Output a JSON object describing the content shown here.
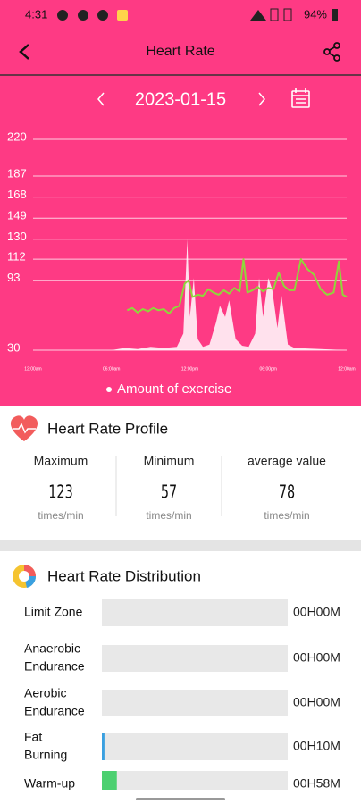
{
  "status_bar": {
    "time": "4:31",
    "battery": "94%"
  },
  "header": {
    "title": "Heart Rate"
  },
  "date": "2023-01-15",
  "chart_data": {
    "type": "line",
    "xlim": [
      0,
      24
    ],
    "xticks": [
      {
        "value": 0,
        "label": "12:00am"
      },
      {
        "value": 6,
        "label": "06:00am"
      },
      {
        "value": 12,
        "label": "12:00pm"
      },
      {
        "value": 18,
        "label": "06:00pm"
      },
      {
        "value": 24,
        "label": "12:00am"
      }
    ],
    "ylim": [
      30,
      220
    ],
    "yticks": [
      30,
      93,
      112,
      130,
      149,
      168,
      187,
      220
    ],
    "grid": true,
    "series": [
      {
        "name": "Amount of exercise",
        "color": "#ffffff",
        "fill": true,
        "x": [
          6,
          7,
          8,
          9,
          10,
          11,
          11.5,
          11.8,
          12,
          12.3,
          12.6,
          13,
          13.5,
          14,
          14.3,
          14.7,
          15,
          15.5,
          16,
          16.5,
          17,
          17.3,
          17.6,
          18,
          18.3,
          18.7,
          19,
          19.5,
          20,
          22,
          24
        ],
        "values": [
          30,
          32,
          31,
          33,
          32,
          33,
          45,
          130,
          60,
          95,
          40,
          33,
          35,
          55,
          70,
          60,
          75,
          40,
          34,
          33,
          45,
          95,
          60,
          95,
          85,
          50,
          80,
          35,
          32,
          31,
          30
        ]
      },
      {
        "color": "#8fd63b",
        "x": [
          7.2,
          7.6,
          8,
          8.4,
          8.8,
          9.2,
          9.6,
          10,
          10.4,
          10.8,
          11.2,
          11.6,
          11.9,
          12.2,
          12.6,
          13,
          13.4,
          13.8,
          14.2,
          14.6,
          15,
          15.4,
          15.8,
          16.1,
          16.4,
          16.8,
          17.2,
          17.6,
          18,
          18.4,
          18.8,
          19.2,
          19.6,
          20,
          20.5,
          21,
          21.5,
          22,
          22.5,
          23,
          23.4,
          23.7,
          24
        ],
        "values": [
          66,
          68,
          64,
          67,
          65,
          68,
          66,
          67,
          63,
          68,
          70,
          90,
          93,
          78,
          80,
          79,
          85,
          82,
          80,
          84,
          81,
          86,
          83,
          112,
          82,
          84,
          87,
          83,
          86,
          85,
          100,
          88,
          84,
          84,
          112,
          103,
          98,
          85,
          80,
          82,
          110,
          80,
          78
        ]
      }
    ]
  },
  "profile": {
    "title": "Heart Rate Profile",
    "stats": [
      {
        "label": "Maximum",
        "value": 123,
        "unit": "times/min"
      },
      {
        "label": "Minimum",
        "value": 57,
        "unit": "times/min"
      },
      {
        "label": "average value",
        "value": 78,
        "unit": "times/min"
      }
    ]
  },
  "distribution": {
    "title": "Heart Rate Distribution",
    "xlim": [
      0,
      720
    ],
    "rows": [
      {
        "label": [
          "Limit Zone"
        ],
        "minutes": 0,
        "time": "00H00M",
        "color": "#f25c5c"
      },
      {
        "label": [
          "Anaerobic",
          "Endurance"
        ],
        "minutes": 0,
        "time": "00H00M",
        "color": "#f5a623"
      },
      {
        "label": [
          "Aerobic",
          "Endurance"
        ],
        "minutes": 0,
        "time": "00H00M",
        "color": "#f0d020"
      },
      {
        "label": [
          "Fat",
          "Burning"
        ],
        "minutes": 10,
        "time": "00H10M",
        "color": "#3aa0e0"
      },
      {
        "label": [
          "Warm-up"
        ],
        "minutes": 58,
        "time": "00H58M",
        "color": "#4cd070"
      }
    ]
  }
}
